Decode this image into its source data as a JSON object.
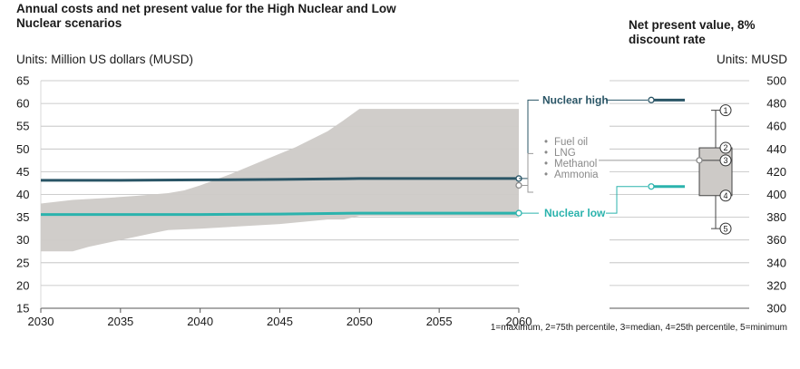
{
  "title": "Annual costs and net present value for the High Nuclear and Low Nuclear scenarios",
  "npv_title": "Net present value, 8% discount rate",
  "units_left": "Units: Million US dollars (MUSD)",
  "units_right": "Units: MUSD",
  "box_note": "1=maximum, 2=75th percentile, 3=median, 4=25th percentile, 5=minimum",
  "colors": {
    "nuclear_high": "#2a5566",
    "nuclear_low": "#2bb3ad",
    "band": "#cdcac7",
    "box": "#cdcac7"
  },
  "chart_data": [
    {
      "type": "area",
      "title": "Annual costs",
      "ylabel": "Units: Million US dollars (MUSD)",
      "xlim": [
        2030,
        2060
      ],
      "ylim": [
        15,
        65
      ],
      "x_ticks": [
        2030,
        2035,
        2040,
        2045,
        2050,
        2055,
        2060
      ],
      "y_ticks": [
        15,
        20,
        25,
        30,
        35,
        40,
        45,
        50,
        55,
        60,
        65
      ],
      "grid": true,
      "band": {
        "name": "Fuel oil, LNG, Methanol, Ammonia",
        "labels": [
          "Fuel oil",
          "LNG",
          "Methanol",
          "Ammonia"
        ],
        "upper": [
          [
            2030,
            38
          ],
          [
            2032,
            38.8
          ],
          [
            2034,
            39.2
          ],
          [
            2036,
            39.7
          ],
          [
            2038,
            40.3
          ],
          [
            2039,
            40.9
          ],
          [
            2040,
            42
          ],
          [
            2042,
            44.6
          ],
          [
            2044,
            47.5
          ],
          [
            2046,
            50.4
          ],
          [
            2048,
            53.9
          ],
          [
            2049,
            56.3
          ],
          [
            2050,
            58.8
          ],
          [
            2060,
            58.8
          ]
        ],
        "lower": [
          [
            2030,
            27.5
          ],
          [
            2032,
            27.5
          ],
          [
            2033,
            28.5
          ],
          [
            2035,
            30
          ],
          [
            2037,
            31.5
          ],
          [
            2038,
            32.2
          ],
          [
            2040,
            32.5
          ],
          [
            2045,
            33.5
          ],
          [
            2048,
            34.5
          ],
          [
            2049,
            34.5
          ],
          [
            2050,
            35.3
          ],
          [
            2060,
            35.2
          ]
        ]
      },
      "series": [
        {
          "name": "Nuclear high",
          "x": [
            2030,
            2035,
            2040,
            2045,
            2050,
            2055,
            2060
          ],
          "values": [
            43.1,
            43.1,
            43.2,
            43.3,
            43.5,
            43.5,
            43.5
          ]
        },
        {
          "name": "Nuclear low",
          "x": [
            2030,
            2035,
            2040,
            2045,
            2050,
            2055,
            2060
          ],
          "values": [
            35.6,
            35.6,
            35.6,
            35.7,
            35.9,
            35.9,
            35.9
          ]
        }
      ]
    },
    {
      "type": "box",
      "title": "Net present value, 8% discount rate",
      "ylabel": "Units: MUSD",
      "ylim": [
        300,
        500
      ],
      "y_ticks": [
        300,
        320,
        340,
        360,
        380,
        400,
        420,
        440,
        460,
        480,
        500
      ],
      "grid": true,
      "box": {
        "maximum": 474,
        "q75": 441,
        "median": 430,
        "q25": 399,
        "minimum": 370,
        "marker_labels": [
          "1",
          "2",
          "3",
          "4",
          "5"
        ]
      },
      "markers": [
        {
          "name": "Nuclear high",
          "value": 483
        },
        {
          "name": "Nuclear low",
          "value": 407
        }
      ]
    }
  ]
}
